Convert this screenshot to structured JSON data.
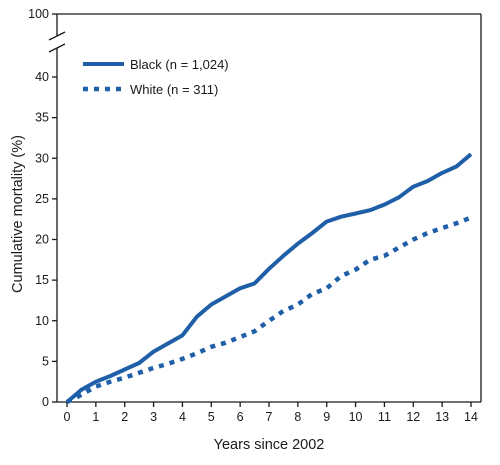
{
  "chart_data": {
    "type": "line",
    "title": "",
    "xlabel": "Years since 2002",
    "ylabel": "Cumulative mortality (%)",
    "xlim": [
      0,
      14
    ],
    "ylim": [
      0,
      40
    ],
    "y_axis_break": {
      "from": 40,
      "to": 100
    },
    "x_ticks": [
      0,
      1,
      2,
      3,
      4,
      5,
      6,
      7,
      8,
      9,
      10,
      11,
      12,
      13,
      14
    ],
    "y_ticks": [
      0,
      5,
      10,
      15,
      20,
      25,
      30,
      35,
      40
    ],
    "y_top_label": "100",
    "grid": false,
    "legend_position": "top-left",
    "series": [
      {
        "name": "Black (n = 1,024)",
        "style": "solid",
        "color": "#1f5fa8",
        "x": [
          0.0,
          0.2,
          0.5,
          1.0,
          1.5,
          2.0,
          2.5,
          3.0,
          3.5,
          4.0,
          4.5,
          5.0,
          5.5,
          6.0,
          6.5,
          7.0,
          7.5,
          8.0,
          8.5,
          9.0,
          9.5,
          10.0,
          10.5,
          11.0,
          11.5,
          12.0,
          12.5,
          13.0,
          13.5,
          14.0
        ],
        "y": [
          0.0,
          0.6,
          1.5,
          2.5,
          3.2,
          4.0,
          4.8,
          6.2,
          7.2,
          8.2,
          10.5,
          12.0,
          13.0,
          14.0,
          14.6,
          16.4,
          18.0,
          19.5,
          20.8,
          22.2,
          22.8,
          23.2,
          23.6,
          24.3,
          25.2,
          26.5,
          27.2,
          28.2,
          29.0,
          30.5
        ]
      },
      {
        "name": "White (n = 311)",
        "style": "dotted",
        "color": "#1f5fa8",
        "x": [
          0.0,
          0.3,
          0.7,
          1.0,
          1.5,
          2.0,
          2.5,
          3.0,
          3.5,
          4.0,
          4.5,
          5.0,
          5.5,
          6.0,
          6.5,
          7.0,
          7.5,
          8.0,
          8.5,
          9.0,
          9.5,
          10.0,
          10.5,
          11.0,
          11.5,
          12.0,
          12.5,
          13.0,
          13.5,
          14.0
        ],
        "y": [
          0.0,
          0.5,
          1.3,
          1.9,
          2.5,
          3.0,
          3.6,
          4.2,
          4.7,
          5.3,
          6.0,
          6.8,
          7.3,
          8.0,
          8.7,
          10.0,
          11.2,
          12.0,
          13.3,
          14.0,
          15.5,
          16.3,
          17.5,
          18.0,
          19.0,
          20.0,
          20.8,
          21.4,
          22.0,
          22.7
        ]
      }
    ]
  }
}
